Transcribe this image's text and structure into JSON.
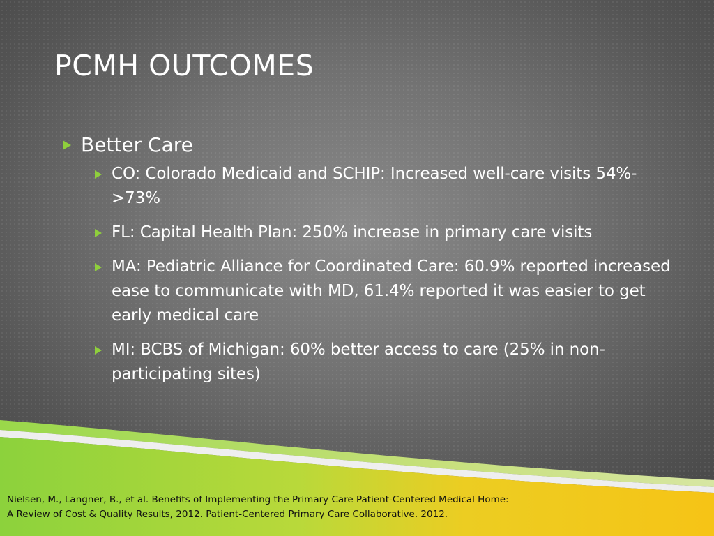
{
  "slide": {
    "title": "PCMH OUTCOMES",
    "bullet": "Better Care",
    "sub_bullets": [
      "CO: Colorado Medicaid and SCHIP: Increased well-care visits 54%->73%",
      "FL: Capital Health Plan: 250% increase in primary care visits",
      "MA: Pediatric Alliance for Coordinated Care: 60.9% reported increased ease to communicate with MD, 61.4% reported it was easier to get early medical care",
      "MI: BCBS of Michigan: 60% better access to care (25% in non-participating sites)"
    ],
    "citation_line1": "Nielsen, M., Langner, B., et al. Benefits of Implementing the Primary Care Patient-Centered Medical Home:",
    "citation_line2": "A Review of Cost & Quality Results, 2012. Patient-Centered Primary Care Collaborative. 2012."
  },
  "colors": {
    "background": "#6e6e6e",
    "bullet_green": "#8fcf3c",
    "band_green": "#8cd23c",
    "band_yellow": "#f5c518",
    "text": "#ffffff"
  },
  "icons": {
    "bullet": "green-triangle-bullet-icon"
  }
}
